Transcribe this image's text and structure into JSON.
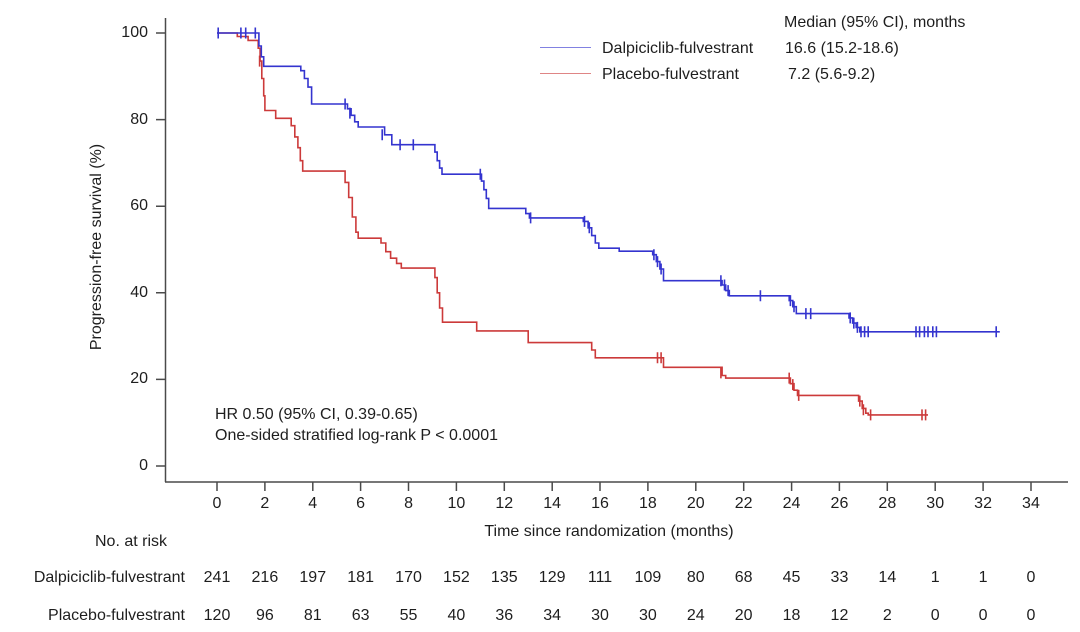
{
  "figure": {
    "y_axis": {
      "label": "Progression-free survival (%)",
      "ticks": [
        0,
        20,
        40,
        60,
        80,
        100
      ]
    },
    "x_axis": {
      "label": "Time since randomization (months)",
      "ticks": [
        0,
        2,
        4,
        6,
        8,
        10,
        12,
        14,
        16,
        18,
        20,
        22,
        24,
        26,
        28,
        30,
        32,
        34
      ]
    },
    "legend": {
      "header": "Median (95% CI), months",
      "series": [
        {
          "name": "Dalpiciclib-fulvestrant",
          "median": "16.6 (15.2-18.6)"
        },
        {
          "name": "Placebo-fulvestrant",
          "median": "7.2 (5.6-9.2)"
        }
      ]
    },
    "annotation": {
      "line1": "HR 0.50 (95% CI, 0.39-0.65)",
      "line2": "One-sided stratified log-rank P < 0.0001"
    },
    "colors": {
      "axis": "#4a4a4a",
      "text": "#1e1e1e"
    }
  },
  "chart_data": {
    "type": "line",
    "subtype": "kaplan-meier-step",
    "title": "",
    "xlabel": "Time since randomization (months)",
    "ylabel": "Progression-free survival (%)",
    "xlim": [
      0,
      34
    ],
    "ylim": [
      0,
      100
    ],
    "grid": false,
    "legend_position": "top-right",
    "series": [
      {
        "name": "Dalpiciclib-fulvestrant",
        "color": "#3434cf",
        "median_95ci_months": "16.6 (15.2-18.6)",
        "end_month": 32.7,
        "steps": [
          [
            0,
            100
          ],
          [
            1.75,
            97
          ],
          [
            1.85,
            94.5
          ],
          [
            1.95,
            92.3
          ],
          [
            3.5,
            91.3
          ],
          [
            3.65,
            89.5
          ],
          [
            3.8,
            87.5
          ],
          [
            3.95,
            83.6
          ],
          [
            5.45,
            82.5
          ],
          [
            5.6,
            81
          ],
          [
            5.75,
            79.5
          ],
          [
            5.9,
            78.3
          ],
          [
            7.0,
            76.5
          ],
          [
            7.3,
            74.2
          ],
          [
            9.1,
            72.5
          ],
          [
            9.2,
            70.5
          ],
          [
            9.3,
            68.8
          ],
          [
            9.4,
            67.4
          ],
          [
            11.05,
            65.8
          ],
          [
            11.15,
            63.8
          ],
          [
            11.25,
            61.8
          ],
          [
            11.35,
            59.5
          ],
          [
            12.9,
            58.3
          ],
          [
            13.05,
            57.3
          ],
          [
            15.3,
            56.5
          ],
          [
            15.5,
            55
          ],
          [
            15.65,
            53.2
          ],
          [
            15.8,
            51.5
          ],
          [
            15.95,
            50.3
          ],
          [
            16.8,
            49.6
          ],
          [
            18.2,
            48.8
          ],
          [
            18.35,
            47.2
          ],
          [
            18.5,
            45.5
          ],
          [
            18.65,
            42.8
          ],
          [
            21.1,
            41.8
          ],
          [
            21.25,
            40.5
          ],
          [
            21.4,
            39.3
          ],
          [
            23.9,
            38.2
          ],
          [
            24.05,
            36.8
          ],
          [
            24.2,
            35.2
          ],
          [
            26.4,
            34.2
          ],
          [
            26.55,
            33
          ],
          [
            26.7,
            32
          ],
          [
            26.85,
            31
          ]
        ],
        "censors": [
          [
            0.05,
            100
          ],
          [
            1.0,
            100
          ],
          [
            1.2,
            100
          ],
          [
            1.6,
            100
          ],
          [
            5.35,
            83.6
          ],
          [
            5.55,
            81.5
          ],
          [
            6.9,
            76.5
          ],
          [
            7.65,
            74.2
          ],
          [
            8.2,
            74.2
          ],
          [
            11.0,
            67.4
          ],
          [
            13.1,
            57.3
          ],
          [
            15.35,
            56.5
          ],
          [
            15.55,
            55
          ],
          [
            18.25,
            48.8
          ],
          [
            18.4,
            47.2
          ],
          [
            18.55,
            45.5
          ],
          [
            21.05,
            42.8
          ],
          [
            21.2,
            41.8
          ],
          [
            21.35,
            40.5
          ],
          [
            22.7,
            39.3
          ],
          [
            23.95,
            38.2
          ],
          [
            24.1,
            36.8
          ],
          [
            24.6,
            35.2
          ],
          [
            24.8,
            35.2
          ],
          [
            26.45,
            34.2
          ],
          [
            26.6,
            33
          ],
          [
            26.75,
            32
          ],
          [
            26.9,
            31
          ],
          [
            27.05,
            31
          ],
          [
            27.2,
            31
          ],
          [
            29.2,
            31
          ],
          [
            29.35,
            31
          ],
          [
            29.55,
            31
          ],
          [
            29.7,
            31
          ],
          [
            29.9,
            31
          ],
          [
            30.05,
            31
          ],
          [
            32.55,
            31
          ]
        ]
      },
      {
        "name": "Placebo-fulvestrant",
        "color": "#cc3a3a",
        "median_95ci_months": "7.2 (5.6-9.2)",
        "end_month": 29.7,
        "steps": [
          [
            0,
            100
          ],
          [
            0.85,
            99.2
          ],
          [
            1.3,
            98.3
          ],
          [
            1.72,
            96.5
          ],
          [
            1.8,
            93.5
          ],
          [
            1.87,
            89.5
          ],
          [
            1.95,
            85.5
          ],
          [
            2.0,
            82.1
          ],
          [
            2.45,
            80.3
          ],
          [
            3.1,
            78.6
          ],
          [
            3.25,
            76
          ],
          [
            3.38,
            73.5
          ],
          [
            3.48,
            70.5
          ],
          [
            3.58,
            68.1
          ],
          [
            5.35,
            65.5
          ],
          [
            5.5,
            62
          ],
          [
            5.65,
            57.5
          ],
          [
            5.8,
            54
          ],
          [
            5.9,
            52.6
          ],
          [
            6.85,
            51.5
          ],
          [
            7.05,
            49.5
          ],
          [
            7.25,
            48
          ],
          [
            7.5,
            46.8
          ],
          [
            7.7,
            45.7
          ],
          [
            9.1,
            43.5
          ],
          [
            9.2,
            40
          ],
          [
            9.3,
            36.5
          ],
          [
            9.42,
            33.2
          ],
          [
            10.85,
            31.2
          ],
          [
            13.0,
            28.5
          ],
          [
            15.65,
            26.8
          ],
          [
            15.8,
            25
          ],
          [
            18.65,
            22.8
          ],
          [
            21.1,
            20.9
          ],
          [
            21.25,
            20.3
          ],
          [
            23.95,
            19
          ],
          [
            24.1,
            17.5
          ],
          [
            24.25,
            16.3
          ],
          [
            26.8,
            15
          ],
          [
            26.95,
            13.3
          ],
          [
            27.1,
            12.2
          ],
          [
            27.2,
            11.8
          ]
        ],
        "censors": [
          [
            1.78,
            93.5
          ],
          [
            18.4,
            25
          ],
          [
            18.55,
            25
          ],
          [
            21.05,
            21.5
          ],
          [
            23.9,
            20.3
          ],
          [
            24.05,
            18.8
          ],
          [
            24.3,
            16.3
          ],
          [
            26.85,
            15
          ],
          [
            27.0,
            13
          ],
          [
            27.3,
            11.8
          ],
          [
            29.45,
            11.8
          ],
          [
            29.6,
            11.8
          ]
        ]
      }
    ]
  },
  "risk_table": {
    "title": "No. at risk",
    "timepoints": [
      0,
      2,
      4,
      6,
      8,
      10,
      12,
      14,
      16,
      18,
      20,
      22,
      24,
      26,
      28,
      30,
      32,
      34
    ],
    "rows": [
      {
        "label": "Dalpiciclib-fulvestrant",
        "counts": [
          241,
          216,
          197,
          181,
          170,
          152,
          135,
          129,
          111,
          109,
          80,
          68,
          45,
          33,
          14,
          1,
          1,
          0
        ]
      },
      {
        "label": "Placebo-fulvestrant",
        "counts": [
          120,
          96,
          81,
          63,
          55,
          40,
          36,
          34,
          30,
          30,
          24,
          20,
          18,
          12,
          2,
          0,
          0,
          0
        ]
      }
    ]
  }
}
